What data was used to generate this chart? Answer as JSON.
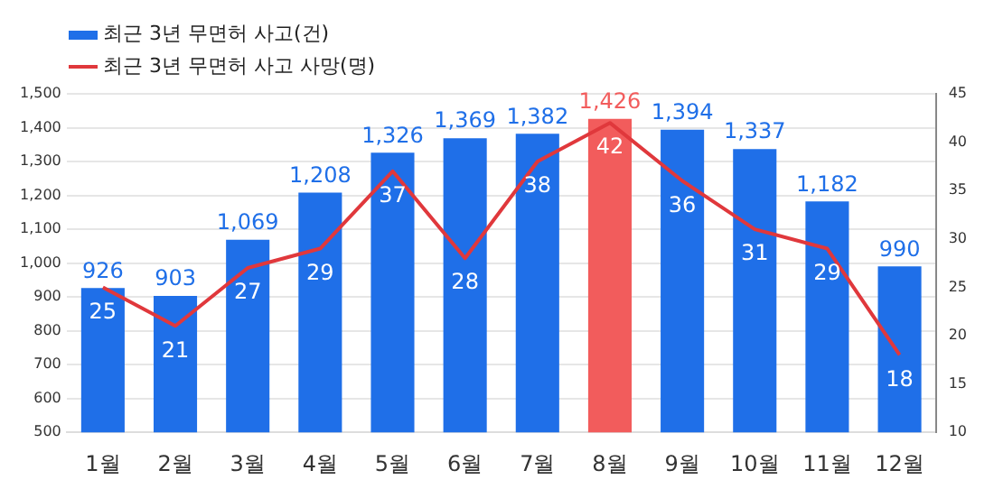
{
  "chart_data": {
    "type": "bar",
    "categories": [
      "1월",
      "2월",
      "3월",
      "4월",
      "5월",
      "6월",
      "7월",
      "8월",
      "9월",
      "10월",
      "11월",
      "12월"
    ],
    "series": [
      {
        "name": "최근 3년 무면허 사고(건)",
        "axis": "y",
        "colors": [
          "#1f6fe8",
          "#1f6fe8",
          "#1f6fe8",
          "#1f6fe8",
          "#1f6fe8",
          "#1f6fe8",
          "#1f6fe8",
          "#f25c5c",
          "#1f6fe8",
          "#1f6fe8",
          "#1f6fe8",
          "#1f6fe8"
        ],
        "values": [
          926,
          903,
          1069,
          1208,
          1326,
          1369,
          1382,
          1426,
          1394,
          1337,
          1182,
          990
        ],
        "value_labels": [
          "926",
          "903",
          "1,069",
          "1,208",
          "1,326",
          "1,369",
          "1,382",
          "1,426",
          "1,394",
          "1,337",
          "1,182",
          "990"
        ]
      },
      {
        "name": "최근 3년 무면허 사고 사망(명)",
        "type": "line",
        "axis": "y2",
        "color": "#e0383c",
        "values": [
          25,
          21,
          27,
          29,
          37,
          28,
          38,
          42,
          36,
          31,
          29,
          18
        ],
        "value_labels": [
          "25",
          "21",
          "27",
          "29",
          "37",
          "28",
          "38",
          "42",
          "36",
          "31",
          "29",
          "18"
        ]
      }
    ],
    "ylim": [
      500,
      1500
    ],
    "yticks": [
      500,
      600,
      700,
      800,
      900,
      {
        "value": 1000,
        "label": "1,000"
      },
      {
        "value": 1100,
        "label": "1,100"
      },
      {
        "value": 1200,
        "label": "1,200"
      },
      {
        "value": 1300,
        "label": "1,300"
      },
      {
        "value": 1400,
        "label": "1,400"
      },
      {
        "value": 1500,
        "label": "1,500"
      }
    ],
    "y2lim": [
      10,
      45
    ],
    "y2ticks": [
      10,
      15,
      20,
      25,
      30,
      35,
      40,
      45
    ],
    "grid": "y",
    "legend": "top left",
    "marker": "none",
    "line_style": "solid"
  }
}
